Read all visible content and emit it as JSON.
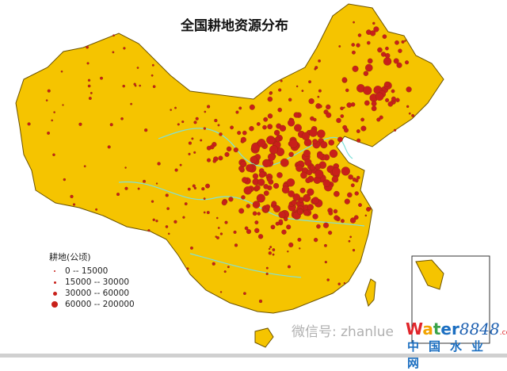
{
  "title": "全国耕地资源分布",
  "legend": {
    "title": "耕地(公顷)",
    "items": [
      {
        "label": "0 -- 15000",
        "size": "smallest"
      },
      {
        "label": "15000 -- 30000",
        "size": "small"
      },
      {
        "label": "30000 -- 60000",
        "size": "medium"
      },
      {
        "label": "60000 -- 200000",
        "size": "large"
      }
    ]
  },
  "watermark": {
    "text": "微信号: zhanlue"
  },
  "logo": {
    "water": "Water",
    "num": "8848",
    "com": ".com",
    "cn": "中国水业网"
  },
  "colors": {
    "land": "#f5c400",
    "dot": "#c8201a",
    "river": "#7fe0d8",
    "border": "#8a6a00"
  }
}
